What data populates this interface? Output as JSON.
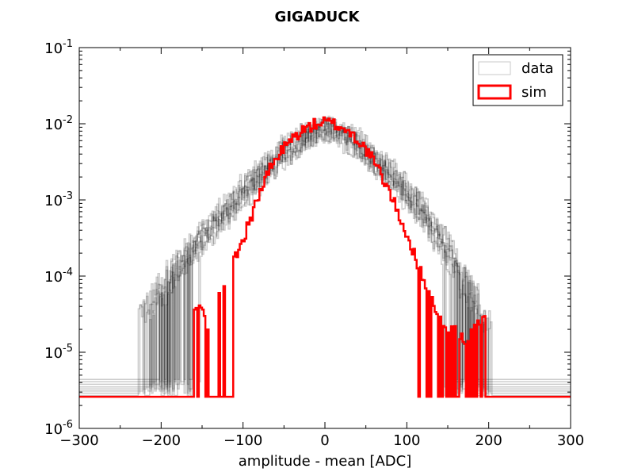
{
  "chart_data": {
    "type": "line",
    "title": "GIGADUCK",
    "xlabel": "amplitude - mean [ADC]",
    "ylabel": "",
    "xlim": [
      -300,
      300
    ],
    "ylim": [
      1e-06,
      0.1
    ],
    "yscale": "log",
    "x_ticks": [
      {
        "value": -300,
        "label": "−300"
      },
      {
        "value": -200,
        "label": "−200"
      },
      {
        "value": -100,
        "label": "−100"
      },
      {
        "value": 0,
        "label": "0"
      },
      {
        "value": 100,
        "label": "100"
      },
      {
        "value": 200,
        "label": "200"
      },
      {
        "value": 300,
        "label": "300"
      }
    ],
    "y_ticks": [
      {
        "value": 1e-06,
        "base": "10",
        "exp": "-6"
      },
      {
        "value": 1e-05,
        "base": "10",
        "exp": "-5"
      },
      {
        "value": 0.0001,
        "base": "10",
        "exp": "-4"
      },
      {
        "value": 0.001,
        "base": "10",
        "exp": "-3"
      },
      {
        "value": 0.01,
        "base": "10",
        "exp": "-2"
      },
      {
        "value": 0.1,
        "base": "10",
        "exp": "-1"
      }
    ],
    "legend": {
      "placement": "top-right",
      "entries": [
        {
          "label": "data",
          "color": "#b0b0b0"
        },
        {
          "label": "sim",
          "color": "#ff0000"
        }
      ]
    },
    "series": [
      {
        "name": "data",
        "style": "step",
        "color": "#000000",
        "opacity": 0.2,
        "copies": 8,
        "floor_levels": [
          2.7e-06,
          2.9e-06,
          3.1e-06,
          3.3e-06,
          3.5e-06,
          3.8e-06,
          4.1e-06,
          4.4e-06
        ],
        "x": [
          -220,
          -200,
          -180,
          -160,
          -140,
          -120,
          -100,
          -80,
          -60,
          -40,
          -20,
          0,
          20,
          40,
          60,
          80,
          100,
          120,
          140,
          160,
          180,
          200
        ],
        "y": [
          3e-05,
          6e-05,
          0.00012,
          0.00022,
          0.0004,
          0.0007,
          0.0012,
          0.002,
          0.0033,
          0.005,
          0.007,
          0.0085,
          0.0075,
          0.0055,
          0.0036,
          0.0022,
          0.0013,
          0.0007,
          0.00035,
          0.00016,
          6e-05,
          2.5e-05
        ]
      },
      {
        "name": "sim",
        "style": "step",
        "color": "#ff0000",
        "floor": 2.6e-06,
        "x": [
          -165,
          -150,
          -140,
          -130,
          -120,
          -110,
          -100,
          -90,
          -80,
          -70,
          -60,
          -50,
          -40,
          -30,
          -20,
          -10,
          0,
          10,
          20,
          30,
          40,
          50,
          60,
          70,
          80,
          90,
          100,
          110,
          120,
          130,
          140,
          150,
          160,
          170,
          180,
          195
        ],
        "y": [
          2.6e-05,
          4.5e-05,
          1.2e-05,
          5e-05,
          0.0001,
          0.00018,
          0.0003,
          0.0006,
          0.0012,
          0.0022,
          0.0034,
          0.0048,
          0.0063,
          0.0078,
          0.009,
          0.01,
          0.0105,
          0.01,
          0.009,
          0.0078,
          0.0062,
          0.0046,
          0.0032,
          0.002,
          0.0012,
          0.00065,
          0.00035,
          0.00018,
          0.0001,
          5e-05,
          3e-05,
          1.5e-05,
          2.5e-05,
          1.2e-05,
          2e-05,
          2.6e-05
        ]
      }
    ]
  }
}
